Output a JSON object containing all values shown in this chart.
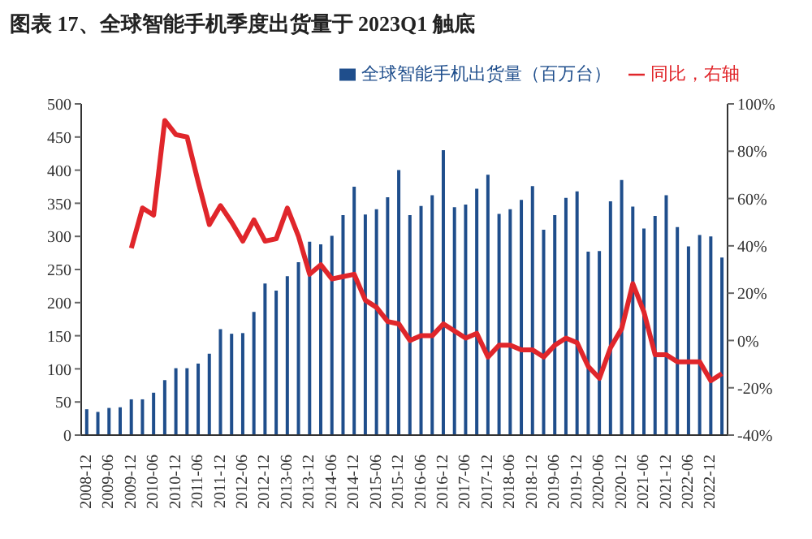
{
  "chart_data": {
    "type": "bar",
    "title": "图表 17、全球智能手机季度出货量于 2023Q1 触底",
    "categories": [
      "2008-12",
      null,
      "2009-06",
      null,
      "2009-12",
      null,
      "2010-06",
      null,
      "2010-12",
      null,
      "2011-06",
      null,
      "2011-12",
      null,
      "2012-06",
      null,
      "2012-12",
      null,
      "2013-06",
      null,
      "2013-12",
      null,
      "2014-06",
      null,
      "2014-12",
      null,
      "2015-06",
      null,
      "2015-12",
      null,
      "2016-06",
      null,
      "2016-12",
      null,
      "2017-06",
      null,
      "2017-12",
      null,
      "2018-06",
      null,
      "2018-12",
      null,
      "2019-06",
      null,
      "2019-12",
      null,
      "2020-06",
      null,
      "2020-12",
      null,
      "2021-06",
      null,
      "2021-12",
      null,
      "2022-06",
      null,
      "2022-12",
      null
    ],
    "series": [
      {
        "name": "全球智能手机出货量（百万台）",
        "color": "#1f4e8c",
        "values": [
          39,
          35,
          41,
          42,
          54,
          54,
          64,
          83,
          101,
          101,
          108,
          123,
          160,
          153,
          154,
          186,
          229,
          218,
          240,
          261,
          292,
          288,
          301,
          332,
          375,
          333,
          341,
          359,
          400,
          332,
          346,
          362,
          430,
          344,
          348,
          372,
          393,
          334,
          341,
          355,
          376,
          310,
          332,
          358,
          368,
          277,
          278,
          353,
          385,
          345,
          312,
          331,
          362,
          314,
          285,
          302,
          300,
          268
        ]
      },
      {
        "name": "同比，右轴",
        "type": "line",
        "axis": "y2",
        "color": "#e0262b",
        "values": [
          null,
          null,
          null,
          null,
          39,
          56,
          53,
          93,
          87,
          86,
          67,
          49,
          57,
          50,
          42,
          51,
          42,
          43,
          56,
          44,
          28,
          32,
          26,
          27,
          28,
          17,
          14,
          8,
          7,
          0,
          2,
          2,
          7,
          4,
          1,
          3,
          -7,
          -2,
          -2,
          -4,
          -4,
          -7,
          -2,
          1,
          -1,
          -11,
          -16,
          -3,
          5,
          24,
          12,
          -6,
          -6,
          -9,
          -9,
          -9,
          -17,
          -14
        ]
      }
    ],
    "ylim": [
      0,
      500
    ],
    "yticks": [
      0,
      50,
      100,
      150,
      200,
      250,
      300,
      350,
      400,
      450,
      500
    ],
    "y2lim": [
      -40,
      100
    ],
    "y2ticks": [
      {
        "value": -40,
        "label": "-40%"
      },
      {
        "value": -20,
        "label": "-20%"
      },
      {
        "value": 0,
        "label": "0%"
      },
      {
        "value": 20,
        "label": "20%"
      },
      {
        "value": 40,
        "label": "40%"
      },
      {
        "value": 60,
        "label": "60%"
      },
      {
        "value": 80,
        "label": "80%"
      },
      {
        "value": 100,
        "label": "100%"
      }
    ],
    "grid": false,
    "legend": "top"
  }
}
